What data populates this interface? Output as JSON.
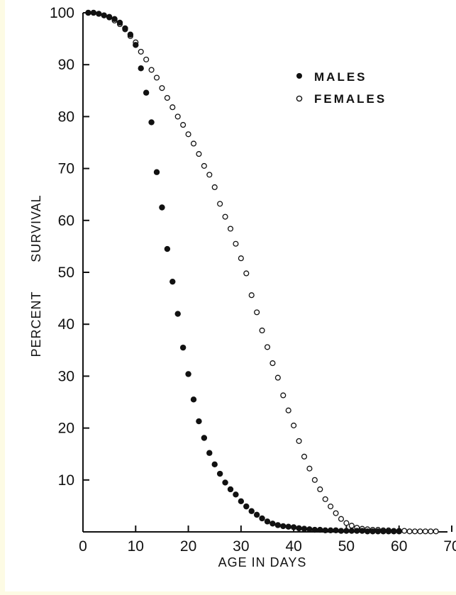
{
  "chart_data": {
    "type": "scatter",
    "xlabel": "AGE IN DAYS",
    "ylabel": "PERCENT SURVIVAL",
    "xlim": [
      0,
      70
    ],
    "ylim": [
      0,
      100
    ],
    "x_ticks": [
      "0",
      "10",
      "20",
      "30",
      "40",
      "50",
      "60",
      "70"
    ],
    "y_ticks": [
      "10",
      "20",
      "30",
      "40",
      "50",
      "60",
      "70",
      "80",
      "90",
      "100"
    ],
    "legend_position": "top-right",
    "series": [
      {
        "name": "MALES",
        "marker": "filled-circle",
        "color": "#111111",
        "x": [
          1,
          2,
          3,
          4,
          5,
          6,
          7,
          8,
          9,
          10,
          11,
          12,
          13,
          14,
          15,
          16,
          17,
          18,
          19,
          20,
          21,
          22,
          23,
          24,
          25,
          26,
          27,
          28,
          29,
          30,
          31,
          32,
          33,
          34,
          35,
          36,
          37,
          38,
          39,
          40,
          41,
          42,
          43,
          44,
          45,
          46,
          47,
          48,
          49,
          50,
          51,
          52,
          53,
          54,
          55,
          56,
          57,
          58,
          59,
          60
        ],
        "y": [
          100,
          100,
          99.8,
          99.5,
          99.2,
          98.8,
          98.1,
          97,
          95.8,
          93.8,
          89.3,
          84.6,
          78.9,
          69.3,
          62.5,
          54.5,
          48.2,
          42,
          35.5,
          30.4,
          25.5,
          21.3,
          18.1,
          15.2,
          13,
          11.2,
          9.5,
          8.2,
          7.2,
          5.9,
          4.9,
          4,
          3.3,
          2.6,
          2,
          1.6,
          1.3,
          1.1,
          1,
          0.9,
          0.7,
          0.6,
          0.5,
          0.4,
          0.4,
          0.3,
          0.3,
          0.3,
          0.2,
          0.2,
          0.2,
          0.2,
          0.2,
          0.1,
          0.1,
          0.1,
          0.1,
          0.1,
          0.1,
          0.1
        ]
      },
      {
        "name": "FEMALES",
        "marker": "open-circle",
        "color": "#111111",
        "x": [
          1,
          2,
          3,
          4,
          5,
          6,
          7,
          8,
          9,
          10,
          11,
          12,
          13,
          14,
          15,
          16,
          17,
          18,
          19,
          20,
          21,
          22,
          23,
          24,
          25,
          26,
          27,
          28,
          29,
          30,
          31,
          32,
          33,
          34,
          35,
          36,
          37,
          38,
          39,
          40,
          41,
          42,
          43,
          44,
          45,
          46,
          47,
          48,
          49,
          50,
          51,
          52,
          53,
          54,
          55,
          56,
          57,
          58,
          59,
          60,
          61,
          62,
          63,
          64,
          65,
          66,
          67
        ],
        "y": [
          100,
          100,
          99.8,
          99.5,
          99.1,
          98.5,
          97.8,
          96.8,
          95.5,
          94.3,
          92.5,
          91,
          89,
          87.5,
          85.5,
          83.6,
          81.8,
          80,
          78.4,
          76.6,
          74.8,
          72.8,
          70.5,
          68.8,
          66.4,
          63.2,
          60.7,
          58.4,
          55.5,
          52.7,
          49.8,
          45.6,
          42.3,
          38.8,
          35.6,
          32.5,
          29.7,
          26.3,
          23.4,
          20.5,
          17.5,
          14.5,
          12.2,
          10,
          8.2,
          6.3,
          4.9,
          3.6,
          2.5,
          1.7,
          1.2,
          0.8,
          0.6,
          0.5,
          0.4,
          0.4,
          0.3,
          0.3,
          0.2,
          0.2,
          0.2,
          0.1,
          0.1,
          0.1,
          0.1,
          0.1,
          0.1
        ]
      }
    ]
  }
}
